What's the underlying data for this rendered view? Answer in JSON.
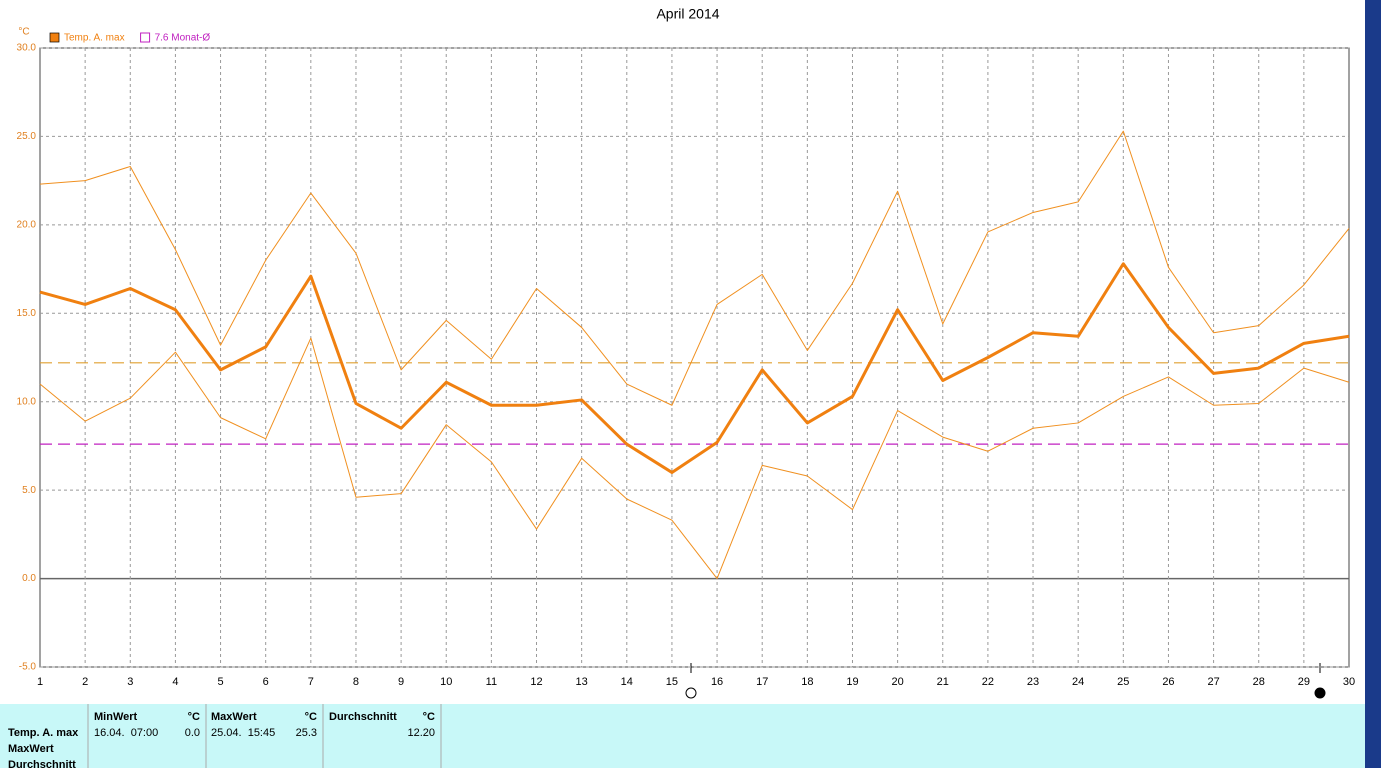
{
  "chart_data": {
    "type": "line",
    "title": "April 2014",
    "y_label": "°C",
    "x": [
      1,
      2,
      3,
      4,
      5,
      6,
      7,
      8,
      9,
      10,
      11,
      12,
      13,
      14,
      15,
      16,
      17,
      18,
      19,
      20,
      21,
      22,
      23,
      24,
      25,
      26,
      27,
      28,
      29,
      30
    ],
    "xlim": [
      1,
      30
    ],
    "xticks": [
      1,
      2,
      3,
      4,
      5,
      6,
      7,
      8,
      9,
      10,
      11,
      12,
      13,
      14,
      15,
      16,
      17,
      18,
      19,
      20,
      21,
      22,
      23,
      24,
      25,
      26,
      27,
      28,
      29,
      30
    ],
    "ylim": [
      -5,
      30
    ],
    "yticks": [
      {
        "value": -5,
        "label": "-5.0"
      },
      {
        "value": 0,
        "label": "0.0"
      },
      {
        "value": 5,
        "label": "5.0"
      },
      {
        "value": 10,
        "label": "10.0"
      },
      {
        "value": 15,
        "label": "15.0"
      },
      {
        "value": 20,
        "label": "20.0"
      },
      {
        "value": 25,
        "label": "25.0"
      },
      {
        "value": 30,
        "label": "30.0"
      }
    ],
    "grid": true,
    "series": [
      {
        "name": "Temp. A. max",
        "color": "#f08010",
        "line_width": 3,
        "values": [
          16.2,
          15.5,
          16.4,
          15.2,
          11.8,
          13.1,
          17.1,
          9.9,
          8.5,
          11.1,
          9.8,
          9.8,
          10.1,
          7.6,
          6.0,
          7.7,
          11.8,
          8.8,
          10.3,
          15.2,
          11.2,
          12.5,
          13.9,
          13.7,
          17.8,
          14.2,
          11.6,
          11.9,
          13.3,
          13.7
        ]
      },
      {
        "color": "#f09020",
        "line_width": 1,
        "values": [
          22.3,
          22.5,
          23.3,
          18.6,
          13.2,
          18.0,
          21.8,
          18.4,
          11.8,
          14.6,
          12.4,
          16.4,
          14.2,
          11.0,
          9.8,
          15.5,
          17.2,
          12.9,
          16.7,
          21.9,
          14.4,
          19.6,
          20.7,
          21.3,
          25.3,
          17.6,
          13.9,
          14.3,
          16.6,
          19.8
        ]
      },
      {
        "color": "#f09020",
        "line_width": 1,
        "values": [
          11.0,
          8.9,
          10.2,
          12.8,
          9.1,
          7.9,
          13.6,
          4.6,
          4.8,
          8.7,
          6.6,
          2.8,
          6.8,
          4.5,
          3.3,
          0.0,
          6.4,
          5.8,
          3.9,
          9.5,
          8.0,
          7.2,
          8.5,
          8.8,
          10.3,
          11.4,
          9.8,
          9.9,
          11.9,
          11.1
        ]
      }
    ],
    "reference_lines": [
      {
        "name": "7.6 Monat-Ø",
        "value": 7.6,
        "color": "#c020c0"
      },
      {
        "value": 12.2,
        "color": "#e0a030"
      }
    ]
  },
  "table": {
    "row_labels": [
      "Temp. A. max",
      "MaxWert",
      "Durchschnitt"
    ],
    "columns": [
      {
        "header": "MinWert",
        "unit": "°C",
        "date": "16.04.  07:00",
        "value": "0.0"
      },
      {
        "header": "MaxWert",
        "unit": "°C",
        "date": "25.04.  15:45",
        "value": "25.3"
      },
      {
        "header": "Durchschnitt",
        "unit": "°C",
        "value": "12.20"
      }
    ]
  }
}
